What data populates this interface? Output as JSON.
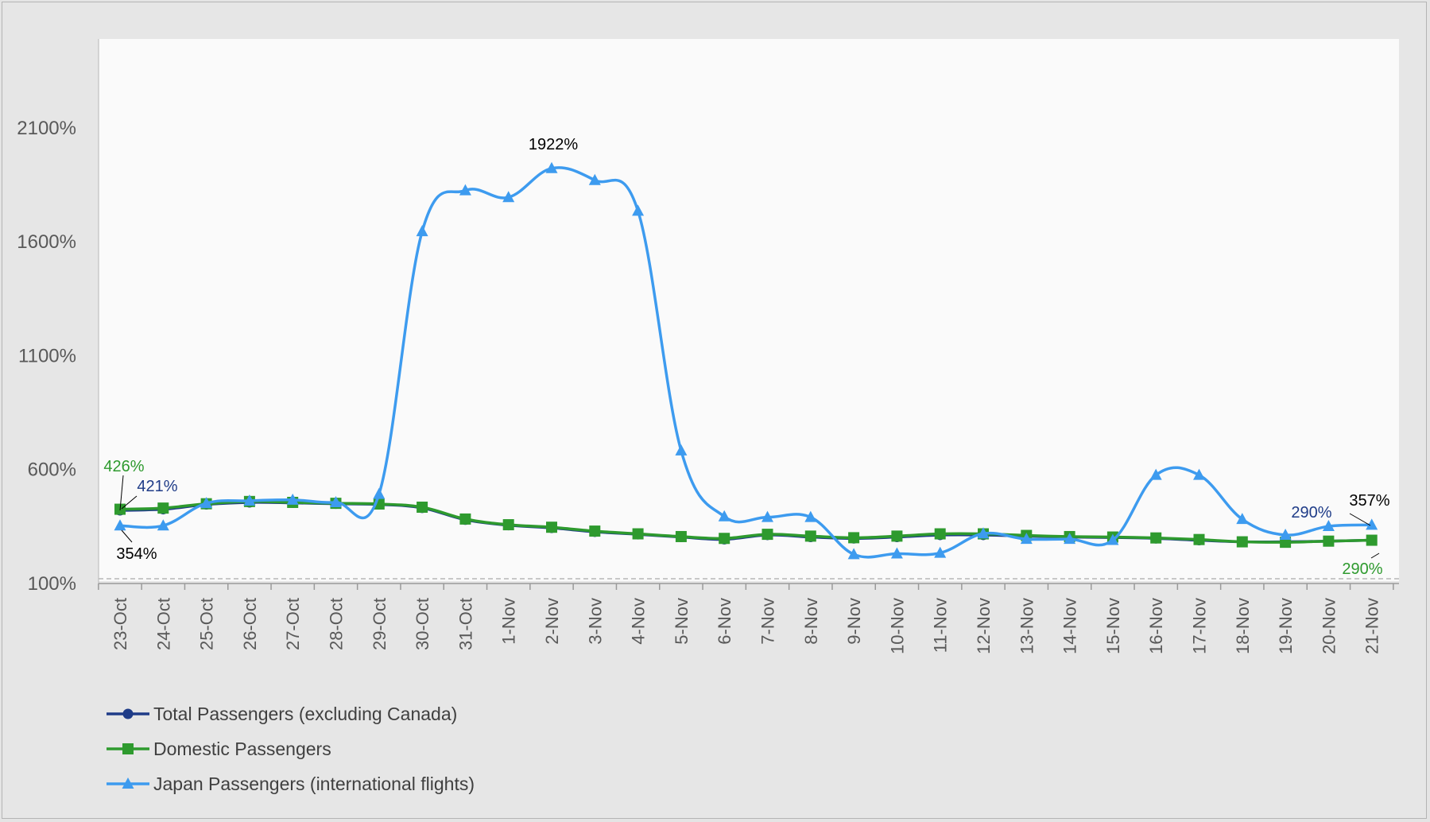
{
  "chart_data": {
    "type": "line",
    "categories": [
      "23-Oct",
      "24-Oct",
      "25-Oct",
      "26-Oct",
      "27-Oct",
      "28-Oct",
      "29-Oct",
      "30-Oct",
      "31-Oct",
      "1-Nov",
      "2-Nov",
      "3-Nov",
      "4-Nov",
      "5-Nov",
      "6-Nov",
      "7-Nov",
      "8-Nov",
      "9-Nov",
      "10-Nov",
      "11-Nov",
      "12-Nov",
      "13-Nov",
      "14-Nov",
      "15-Nov",
      "16-Nov",
      "17-Nov",
      "18-Nov",
      "19-Nov",
      "20-Nov",
      "21-Nov"
    ],
    "y_ticks": [
      "100%",
      "600%",
      "1100%",
      "1600%",
      "2100%"
    ],
    "ylim": [
      100,
      2490
    ],
    "grid": false,
    "legend_position": "bottom-left",
    "series": [
      {
        "name": "Total Passengers (excluding Canada)",
        "color": "#1f3c88",
        "marker": "circle",
        "values": [
          421,
          426,
          447,
          456,
          454,
          450,
          447,
          432,
          380,
          356,
          344,
          327,
          316,
          304,
          294,
          313,
          304,
          298,
          304,
          313,
          313,
          308,
          304,
          302,
          298,
          290,
          283,
          283,
          286,
          290
        ]
      },
      {
        "name": "Domestic Passengers",
        "color": "#2e9a2e",
        "marker": "square",
        "values": [
          426,
          431,
          450,
          460,
          456,
          452,
          449,
          435,
          383,
          358,
          347,
          330,
          318,
          306,
          298,
          316,
          308,
          301,
          308,
          318,
          318,
          311,
          306,
          304,
          300,
          293,
          283,
          281,
          286,
          290
        ]
      },
      {
        "name": "Japan Passengers (international flights)",
        "color": "#3d9bef",
        "marker": "triangle",
        "values": [
          354,
          354,
          452,
          463,
          467,
          456,
          492,
          1645,
          1825,
          1795,
          1922,
          1870,
          1735,
          683,
          394,
          391,
          391,
          228,
          231,
          234,
          319,
          295,
          295,
          290,
          576,
          576,
          382,
          313,
          351,
          357
        ]
      }
    ],
    "annotations": [
      {
        "text": "426%",
        "color": "#2e9a2e"
      },
      {
        "text": "421%",
        "color": "#1f3c88"
      },
      {
        "text": "354%",
        "color": "#000000"
      },
      {
        "text": "1922%",
        "color": "#000000"
      },
      {
        "text": "290%",
        "color": "#1f3c88"
      },
      {
        "text": "357%",
        "color": "#000000"
      },
      {
        "text": "290%",
        "color": "#2e9a2e"
      }
    ]
  }
}
